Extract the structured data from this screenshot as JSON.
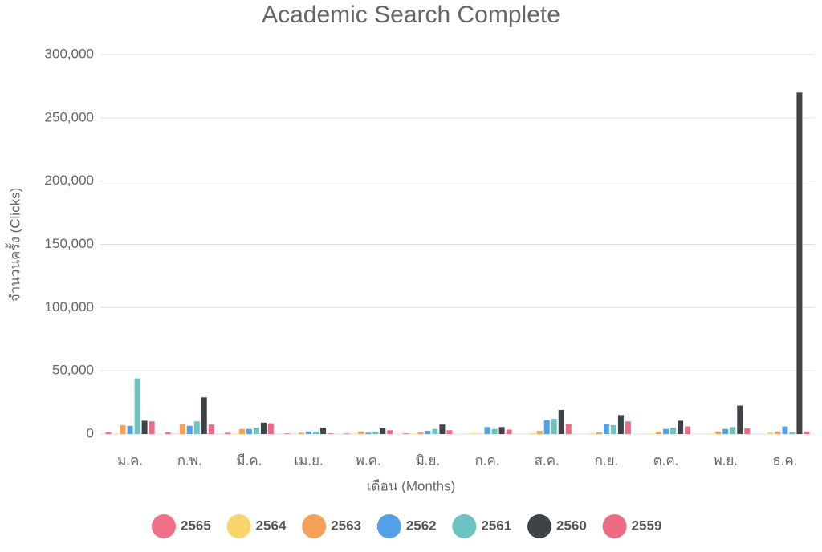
{
  "chart_data": {
    "type": "bar",
    "title": "Academic Search Complete",
    "x_label": "เดือน (Months)",
    "y_label": "จำนวนครั้ง (Clicks)",
    "categories": [
      "ม.ค.",
      "ก.พ.",
      "มี.ค.",
      "เม.ย.",
      "พ.ค.",
      "มิ.ย.",
      "ก.ค.",
      "ส.ค.",
      "ก.ย.",
      "ต.ค.",
      "พ.ย.",
      "ธ.ค."
    ],
    "ylim": [
      0,
      300000
    ],
    "yticks": [
      0,
      {
        "value": 50000,
        "label": "50,000"
      },
      {
        "value": 100000,
        "label": "100,000"
      },
      {
        "value": 150000,
        "label": "150,000"
      },
      {
        "value": 200000,
        "label": "200,000"
      },
      {
        "value": 250000,
        "label": "250,000"
      },
      {
        "value": 300000,
        "label": "300,000"
      }
    ],
    "grid": true,
    "legend": "bottom",
    "series": [
      {
        "name": "2565",
        "color": "#f07088",
        "values": [
          1500,
          1500,
          1000,
          500,
          500,
          500,
          0,
          0,
          0,
          0,
          0,
          0
        ]
      },
      {
        "name": "2564",
        "color": "#f9d56e",
        "values": [
          300,
          300,
          300,
          300,
          300,
          300,
          500,
          500,
          500,
          300,
          300,
          1500
        ]
      },
      {
        "name": "2563",
        "color": "#f4a259",
        "values": [
          7000,
          8000,
          4000,
          1000,
          2000,
          1500,
          200,
          2500,
          1500,
          2000,
          2000,
          2000
        ]
      },
      {
        "name": "2562",
        "color": "#53a0e6",
        "values": [
          6500,
          6500,
          4000,
          2000,
          1000,
          2500,
          5500,
          11000,
          8000,
          4000,
          4000,
          6000
        ]
      },
      {
        "name": "2561",
        "color": "#6cc3c1",
        "values": [
          44000,
          10000,
          5000,
          2000,
          1500,
          4000,
          4000,
          12000,
          7000,
          5000,
          5500,
          1500
        ]
      },
      {
        "name": "2560",
        "color": "#3f4347",
        "values": [
          10500,
          29000,
          9000,
          5000,
          4500,
          7500,
          5500,
          19000,
          15000,
          10500,
          22500,
          270000
        ]
      },
      {
        "name": "2559",
        "color": "#ee6b86",
        "values": [
          10000,
          7500,
          8500,
          500,
          3000,
          3000,
          3500,
          8000,
          10000,
          6000,
          4500,
          2000
        ]
      }
    ]
  }
}
